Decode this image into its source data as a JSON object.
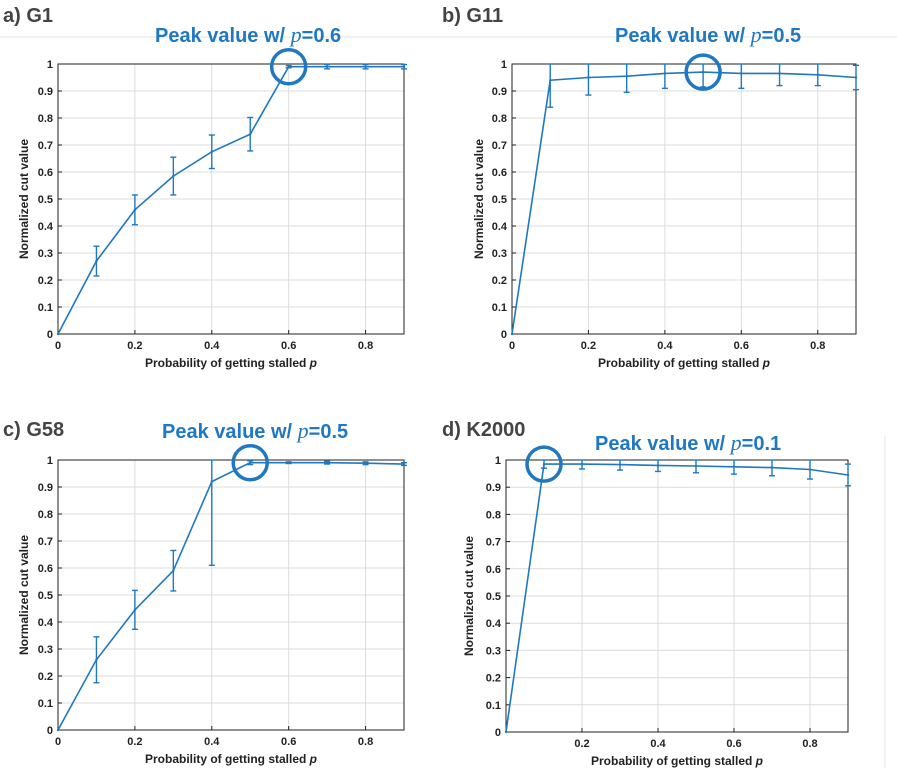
{
  "chart_data": [
    {
      "type": "line",
      "panel_label": "a) G1",
      "annotation": {
        "prefix": "Peak value w/ ",
        "var": "p",
        "suffix": "=0.6"
      },
      "peak_x": 0.6,
      "peak_y": 0.99,
      "xlabel": "Probability of getting stalled",
      "xlabel_var": "p",
      "ylabel": "Normalized cut value",
      "xlim": [
        0,
        0.9
      ],
      "ylim": [
        0,
        1
      ],
      "xticks": [
        "0",
        "0.2",
        "0.4",
        "0.6",
        "0.8"
      ],
      "yticks": [
        "0",
        "0.1",
        "0.2",
        "0.3",
        "0.4",
        "0.5",
        "0.6",
        "0.7",
        "0.8",
        "0.9",
        "1"
      ],
      "x": [
        0,
        0.1,
        0.2,
        0.3,
        0.4,
        0.5,
        0.6,
        0.7,
        0.8,
        0.9
      ],
      "y": [
        0,
        0.27,
        0.46,
        0.585,
        0.675,
        0.74,
        0.99,
        0.99,
        0.99,
        0.99
      ],
      "err": [
        0,
        0.055,
        0.055,
        0.07,
        0.062,
        0.062,
        0.004,
        0.008,
        0.008,
        0.008
      ]
    },
    {
      "type": "line",
      "panel_label": "b) G11",
      "annotation": {
        "prefix": "Peak value w/ ",
        "var": "p",
        "suffix": "=0.5"
      },
      "peak_x": 0.5,
      "peak_y": 0.97,
      "xlabel": "Probability of getting stalled",
      "xlabel_var": "p",
      "ylabel": "Normalized cut value",
      "xlim": [
        0,
        0.9
      ],
      "ylim": [
        0,
        1
      ],
      "xticks": [
        "0",
        "0.2",
        "0.4",
        "0.6",
        "0.8"
      ],
      "yticks": [
        "0",
        "0.1",
        "0.2",
        "0.3",
        "0.4",
        "0.5",
        "0.6",
        "0.7",
        "0.8",
        "0.9",
        "1"
      ],
      "x": [
        0,
        0.1,
        0.2,
        0.3,
        0.4,
        0.5,
        0.6,
        0.7,
        0.8,
        0.9
      ],
      "y": [
        0,
        0.94,
        0.95,
        0.955,
        0.965,
        0.97,
        0.965,
        0.965,
        0.96,
        0.95
      ],
      "err": [
        0,
        0.1,
        0.065,
        0.06,
        0.055,
        0.055,
        0.055,
        0.045,
        0.04,
        0.045
      ]
    },
    {
      "type": "line",
      "panel_label": "c) G58",
      "annotation": {
        "prefix": "Peak value w/ ",
        "var": "p",
        "suffix": "=0.5"
      },
      "peak_x": 0.5,
      "peak_y": 0.99,
      "xlabel": "Probability of getting stalled",
      "xlabel_var": "p",
      "ylabel": "Normalized cut value",
      "xlim": [
        0,
        0.9
      ],
      "ylim": [
        0,
        1
      ],
      "xticks": [
        "0",
        "0.2",
        "0.4",
        "0.6",
        "0.8"
      ],
      "yticks": [
        "0",
        "0.1",
        "0.2",
        "0.3",
        "0.4",
        "0.5",
        "0.6",
        "0.7",
        "0.8",
        "0.9",
        "1"
      ],
      "x": [
        0,
        0.1,
        0.2,
        0.3,
        0.4,
        0.5,
        0.6,
        0.7,
        0.8,
        0.9
      ],
      "y": [
        0,
        0.26,
        0.445,
        0.59,
        0.92,
        0.99,
        0.99,
        0.99,
        0.988,
        0.985
      ],
      "err": [
        0,
        0.085,
        0.072,
        0.075,
        0.31,
        0.007,
        0.003,
        0.005,
        0.005,
        0.005
      ]
    },
    {
      "type": "line",
      "panel_label": "d) K2000",
      "annotation": {
        "prefix": "Peak value w/ ",
        "var": "p",
        "suffix": "=0.1"
      },
      "peak_x": 0.1,
      "peak_y": 0.985,
      "xlabel": "Probability of getting stalled",
      "xlabel_var": "p",
      "ylabel": "Normalized cut value",
      "xlim": [
        0,
        0.9
      ],
      "ylim": [
        0,
        1
      ],
      "xticks": [
        "0.2",
        "0.4",
        "0.6",
        "0.8"
      ],
      "yticks": [
        "0",
        "0.1",
        "0.2",
        "0.3",
        "0.4",
        "0.5",
        "0.6",
        "0.7",
        "0.8",
        "0.9",
        "1"
      ],
      "x": [
        0,
        0.1,
        0.2,
        0.3,
        0.4,
        0.5,
        0.6,
        0.7,
        0.8,
        0.9
      ],
      "y": [
        0,
        0.985,
        0.985,
        0.983,
        0.98,
        0.978,
        0.975,
        0.972,
        0.965,
        0.945
      ],
      "err": [
        0,
        0.015,
        0.018,
        0.02,
        0.022,
        0.025,
        0.027,
        0.03,
        0.035,
        0.04
      ]
    }
  ],
  "colors": {
    "series": "#1f78c1",
    "grid": "#dcdcdc",
    "axis": "#222222"
  }
}
